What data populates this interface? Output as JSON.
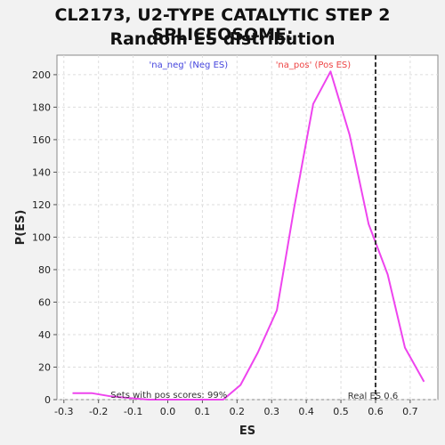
{
  "chart_data": {
    "type": "line",
    "title_line1": "CL2173, U2-TYPE CATALYTIC STEP 2 SPLICEOSOME:",
    "title_line2": "Random ES distribution",
    "xlabel": "ES",
    "ylabel": "P(ES)",
    "xlim": [
      -0.32,
      0.78
    ],
    "ylim": [
      0,
      212
    ],
    "xticks": [
      -0.3,
      -0.2,
      -0.1,
      0.0,
      0.1,
      0.2,
      0.3,
      0.4,
      0.5,
      0.6,
      0.7
    ],
    "yticks": [
      0,
      20,
      40,
      60,
      80,
      100,
      120,
      140,
      160,
      180,
      200
    ],
    "grid": true,
    "series": [
      {
        "name": "",
        "color": "#ee44ee",
        "x": [
          -0.275,
          -0.22,
          -0.165,
          -0.11,
          -0.055,
          0.0,
          0.055,
          0.105,
          0.16,
          0.21,
          0.26,
          0.315,
          0.365,
          0.42,
          0.47,
          0.525,
          0.58,
          0.635,
          0.685,
          0.74
        ],
        "y": [
          4,
          4,
          2,
          1,
          0,
          0,
          0,
          0,
          0,
          9,
          29,
          55,
          118,
          182,
          202,
          163,
          108,
          77,
          32,
          11
        ]
      }
    ],
    "legend": [
      {
        "label": "'na_neg' (Neg ES)",
        "color": "#4444dd"
      },
      {
        "label": "'na_pos' (Pos ES)",
        "color": "#ee4444"
      }
    ],
    "legend_placement": "top",
    "real_es": 0.6,
    "real_es_label": "Real ES 0.6",
    "annotation": "Sets with pos scores: 99%"
  }
}
